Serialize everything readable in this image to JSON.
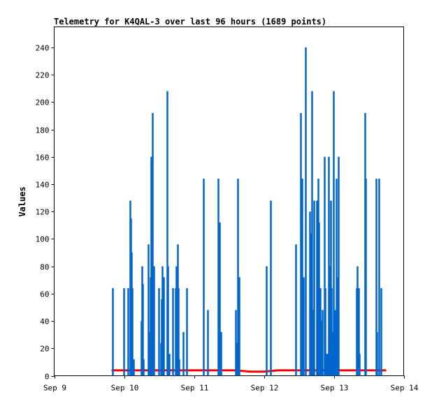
{
  "chart_data": {
    "type": "line",
    "title": "Telemetry for K4QAL-3 over last 96 hours (1689 points)",
    "xlabel": "",
    "ylabel": "Values",
    "xlim": [
      0,
      5
    ],
    "ylim": [
      0,
      255
    ],
    "grid": false,
    "x_ticks": [
      {
        "value": 0,
        "label": "Sep 9"
      },
      {
        "value": 1,
        "label": "Sep 10"
      },
      {
        "value": 2,
        "label": "Sep 11"
      },
      {
        "value": 3,
        "label": "Sep 12"
      },
      {
        "value": 4,
        "label": "Sep 13"
      },
      {
        "value": 5,
        "label": "Sep 14"
      }
    ],
    "y_ticks": [
      0,
      20,
      40,
      60,
      80,
      100,
      120,
      140,
      160,
      180,
      200,
      220,
      240
    ],
    "colors": {
      "spikes": "#0066cc",
      "baseline": "#ff0000"
    },
    "series": [
      {
        "kind": "spikes",
        "x": [
          0.84,
          1.0,
          1.06,
          1.09,
          1.1,
          1.11,
          1.12,
          1.14,
          1.25,
          1.26,
          1.27,
          1.28,
          1.35,
          1.37,
          1.38,
          1.39,
          1.41,
          1.42,
          1.43,
          1.5,
          1.53,
          1.54,
          1.55,
          1.57,
          1.62,
          1.63,
          1.65,
          1.7,
          1.74,
          1.75,
          1.77,
          1.78,
          1.79,
          1.85,
          1.9,
          2.14,
          2.2,
          2.35,
          2.37,
          2.38,
          2.39,
          2.6,
          2.61,
          2.63,
          2.65,
          3.04,
          3.1,
          3.46,
          3.53,
          3.55,
          3.57,
          3.6,
          3.66,
          3.68,
          3.69,
          3.7,
          3.71,
          3.72,
          3.76,
          3.78,
          3.79,
          3.81,
          3.82,
          3.84,
          3.87,
          3.88,
          3.9,
          3.91,
          3.93,
          3.95,
          3.96,
          3.97,
          3.98,
          4.0,
          4.02,
          4.04,
          4.05,
          4.06,
          4.07,
          4.33,
          4.34,
          4.36,
          4.37,
          4.45,
          4.46,
          4.61,
          4.62,
          4.65,
          4.68
        ],
        "y": [
          64,
          64,
          64,
          128,
          115,
          90,
          64,
          12,
          40,
          80,
          67,
          12,
          96,
          32,
          72,
          160,
          192,
          32,
          80,
          64,
          24,
          56,
          80,
          72,
          208,
          80,
          16,
          64,
          64,
          80,
          96,
          64,
          12,
          32,
          64,
          144,
          48,
          144,
          112,
          16,
          32,
          48,
          24,
          144,
          72,
          80,
          128,
          96,
          192,
          144,
          72,
          240,
          120,
          104,
          208,
          48,
          16,
          128,
          128,
          144,
          112,
          64,
          40,
          48,
          160,
          64,
          16,
          16,
          160,
          80,
          128,
          64,
          32,
          208,
          48,
          144,
          16,
          72,
          160,
          64,
          80,
          64,
          16,
          192,
          144,
          144,
          32,
          144,
          64
        ]
      },
      {
        "kind": "baseline",
        "x": [
          0.82,
          1.0,
          1.2,
          1.4,
          1.6,
          1.8,
          2.0,
          2.2,
          2.4,
          2.6,
          2.8,
          3.0,
          3.2,
          3.4,
          3.6,
          3.8,
          4.0,
          4.2,
          4.4,
          4.6,
          4.75
        ],
        "y": [
          4,
          4,
          4,
          4,
          4,
          4,
          4,
          4,
          4,
          4,
          3,
          3,
          4,
          4,
          4,
          4,
          4,
          4,
          4,
          4,
          4
        ]
      }
    ]
  }
}
